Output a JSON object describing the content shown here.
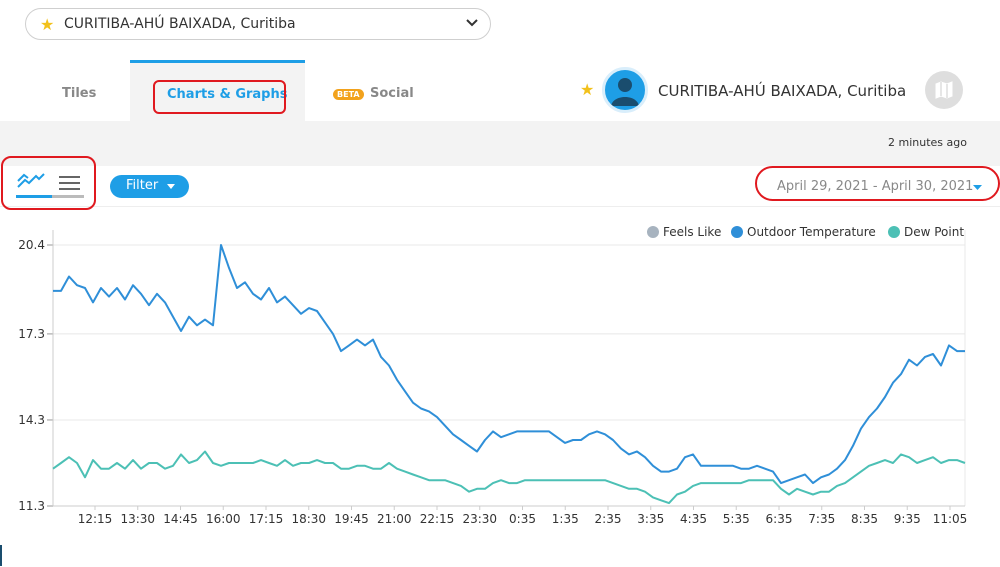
{
  "station_selector": {
    "value": "CURITIBA-AHÚ BAIXADA, Curitiba"
  },
  "tabs": [
    {
      "label": "Tiles"
    },
    {
      "label": "Charts & Graphs"
    },
    {
      "label": "Social",
      "badge": "BETA"
    }
  ],
  "header": {
    "station_name": "CURITIBA-AHÚ BAIXADA, Curitiba"
  },
  "status": {
    "updated": "2 minutes ago"
  },
  "toolbar": {
    "filter_label": "Filter",
    "date_range": "April 29, 2021 - April 30, 2021"
  },
  "colors": {
    "accent": "#1e9ee6",
    "feels_like": "#a7b3bf",
    "outdoor_temp": "#2f8fd8",
    "dew_point": "#4cc0b5",
    "annotation": "#e0191f"
  },
  "chart_data": {
    "type": "line",
    "legend": [
      "Feels Like",
      "Outdoor Temperature",
      "Dew Point"
    ],
    "legend_position": "top-right",
    "y_ticks": [
      "20.4",
      "17.3",
      "14.3",
      "11.3"
    ],
    "ylim": [
      11.3,
      20.4
    ],
    "x_ticks": [
      "12:15",
      "13:30",
      "14:45",
      "16:00",
      "17:15",
      "18:30",
      "19:45",
      "21:00",
      "22:15",
      "23:30",
      "0:35",
      "1:35",
      "2:35",
      "3:35",
      "4:35",
      "5:35",
      "6:35",
      "7:35",
      "8:35",
      "9:35",
      "11:05"
    ],
    "grid": true,
    "series": [
      {
        "name": "Outdoor Temperature",
        "values": [
          18.8,
          18.8,
          19.3,
          19.0,
          18.9,
          18.4,
          18.9,
          18.6,
          18.9,
          18.5,
          19.0,
          18.7,
          18.3,
          18.7,
          18.4,
          17.9,
          17.4,
          17.9,
          17.6,
          17.8,
          17.6,
          20.4,
          19.6,
          18.9,
          19.1,
          18.7,
          18.5,
          18.9,
          18.4,
          18.6,
          18.3,
          18.0,
          18.2,
          18.1,
          17.7,
          17.3,
          16.7,
          16.9,
          17.1,
          16.9,
          17.1,
          16.5,
          16.2,
          15.7,
          15.3,
          14.9,
          14.7,
          14.6,
          14.4,
          14.1,
          13.8,
          13.6,
          13.4,
          13.2,
          13.6,
          13.9,
          13.7,
          13.8,
          13.9,
          13.9,
          13.9,
          13.9,
          13.9,
          13.7,
          13.5,
          13.6,
          13.6,
          13.8,
          13.9,
          13.8,
          13.6,
          13.3,
          13.1,
          13.2,
          13.0,
          12.7,
          12.5,
          12.5,
          12.6,
          13.0,
          13.1,
          12.7,
          12.7,
          12.7,
          12.7,
          12.7,
          12.6,
          12.6,
          12.7,
          12.6,
          12.5,
          12.1,
          12.2,
          12.3,
          12.4,
          12.1,
          12.3,
          12.4,
          12.6,
          12.9,
          13.4,
          14.0,
          14.4,
          14.7,
          15.1,
          15.6,
          15.9,
          16.4,
          16.2,
          16.5,
          16.6,
          16.2,
          16.9,
          16.7,
          16.7
        ]
      },
      {
        "name": "Dew Point",
        "values": [
          12.6,
          12.8,
          13.0,
          12.8,
          12.3,
          12.9,
          12.6,
          12.6,
          12.8,
          12.6,
          12.9,
          12.6,
          12.8,
          12.8,
          12.6,
          12.7,
          13.1,
          12.8,
          12.9,
          13.2,
          12.8,
          12.7,
          12.8,
          12.8,
          12.8,
          12.8,
          12.9,
          12.8,
          12.7,
          12.9,
          12.7,
          12.8,
          12.8,
          12.9,
          12.8,
          12.8,
          12.6,
          12.6,
          12.7,
          12.7,
          12.6,
          12.6,
          12.8,
          12.6,
          12.5,
          12.4,
          12.3,
          12.2,
          12.2,
          12.2,
          12.1,
          12.0,
          11.8,
          11.9,
          11.9,
          12.1,
          12.2,
          12.1,
          12.1,
          12.2,
          12.2,
          12.2,
          12.2,
          12.2,
          12.2,
          12.2,
          12.2,
          12.2,
          12.2,
          12.2,
          12.1,
          12.0,
          11.9,
          11.9,
          11.8,
          11.6,
          11.5,
          11.4,
          11.7,
          11.8,
          12.0,
          12.1,
          12.1,
          12.1,
          12.1,
          12.1,
          12.1,
          12.2,
          12.2,
          12.2,
          12.2,
          11.9,
          11.7,
          11.9,
          11.8,
          11.7,
          11.8,
          11.8,
          12.0,
          12.1,
          12.3,
          12.5,
          12.7,
          12.8,
          12.9,
          12.8,
          13.1,
          13.0,
          12.8,
          12.9,
          13.0,
          12.8,
          12.9,
          12.9,
          12.8
        ]
      }
    ]
  }
}
